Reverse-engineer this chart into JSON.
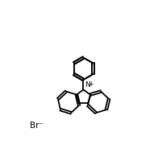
{
  "background_color": "#ffffff",
  "line_color": "#000000",
  "line_width": 1.3,
  "text_color": "#000000",
  "label_Br": "Br⁻",
  "label_N": "N",
  "label_Nplus": "+",
  "figsize": [
    1.96,
    2.01
  ],
  "dpi": 100,
  "xlim": [
    0.0,
    1.0
  ],
  "ylim": [
    0.0,
    1.0
  ]
}
